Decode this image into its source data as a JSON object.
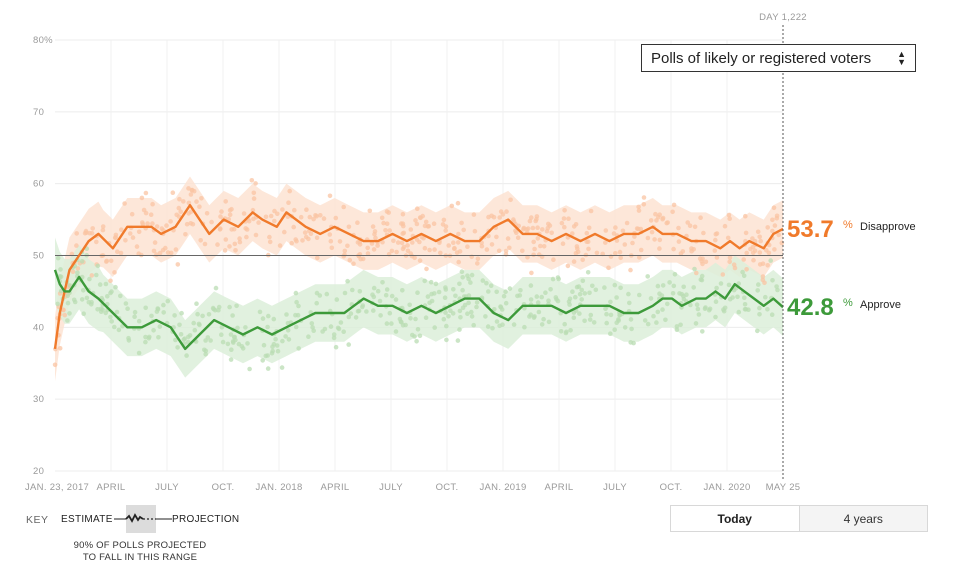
{
  "chart_data": {
    "type": "line",
    "y_ticks": [
      "80%",
      "70",
      "60",
      "50",
      "40",
      "30",
      "20"
    ],
    "ylim": [
      20,
      80
    ],
    "x_ticks": [
      "JAN. 23, 2017",
      "APRIL",
      "JULY",
      "OCT.",
      "JAN. 2018",
      "APRIL",
      "JULY",
      "OCT.",
      "JAN. 2019",
      "APRIL",
      "JULY",
      "OCT.",
      "JAN. 2020",
      "MAY 25"
    ],
    "reference_line": 50,
    "marker_label": "DAY 1,222",
    "series": [
      {
        "name": "Disapprove",
        "color": "#f07a2b",
        "points": [
          [
            0,
            37
          ],
          [
            1,
            42
          ],
          [
            2,
            45
          ],
          [
            3,
            48
          ],
          [
            4,
            49
          ],
          [
            5,
            50
          ],
          [
            6,
            51
          ],
          [
            7,
            52
          ],
          [
            9,
            53
          ],
          [
            12,
            51
          ],
          [
            15,
            54
          ],
          [
            20,
            54
          ],
          [
            22,
            53
          ],
          [
            25,
            54
          ],
          [
            28,
            57
          ],
          [
            30,
            55
          ],
          [
            32,
            53
          ],
          [
            35,
            55
          ],
          [
            38,
            54
          ],
          [
            41,
            56
          ],
          [
            43,
            55
          ],
          [
            46,
            54
          ],
          [
            48,
            56
          ],
          [
            50,
            55
          ],
          [
            52,
            54
          ],
          [
            55,
            53
          ],
          [
            58,
            54
          ],
          [
            61,
            53
          ],
          [
            64,
            52
          ],
          [
            67,
            52
          ],
          [
            70,
            53
          ],
          [
            73,
            52
          ],
          [
            76,
            53
          ],
          [
            79,
            52
          ],
          [
            82,
            53
          ],
          [
            85,
            52
          ],
          [
            88,
            52
          ],
          [
            91,
            54
          ],
          [
            94,
            55
          ],
          [
            97,
            53
          ],
          [
            100,
            53
          ],
          [
            103,
            52
          ],
          [
            106,
            53
          ],
          [
            109,
            52
          ],
          [
            112,
            53
          ],
          [
            115,
            52
          ],
          [
            118,
            53
          ],
          [
            121,
            53
          ],
          [
            124,
            54
          ],
          [
            126,
            53
          ],
          [
            129,
            53
          ],
          [
            132,
            52
          ],
          [
            135,
            52
          ],
          [
            138,
            51
          ],
          [
            140,
            52
          ],
          [
            142,
            51
          ],
          [
            144,
            52
          ],
          [
            147,
            51
          ],
          [
            149,
            53
          ],
          [
            151,
            53.7
          ]
        ],
        "current_value": "53.7",
        "label": "Disapprove"
      },
      {
        "name": "Approve",
        "color": "#3d9a3a",
        "points": [
          [
            0,
            48
          ],
          [
            1,
            46
          ],
          [
            2,
            45
          ],
          [
            3,
            45
          ],
          [
            5,
            47
          ],
          [
            7,
            45
          ],
          [
            9,
            44
          ],
          [
            12,
            42
          ],
          [
            15,
            40
          ],
          [
            18,
            40
          ],
          [
            21,
            41
          ],
          [
            24,
            40
          ],
          [
            27,
            37
          ],
          [
            30,
            39
          ],
          [
            33,
            41
          ],
          [
            36,
            40
          ],
          [
            39,
            39
          ],
          [
            42,
            40
          ],
          [
            45,
            39
          ],
          [
            48,
            40
          ],
          [
            51,
            41
          ],
          [
            54,
            42
          ],
          [
            57,
            42
          ],
          [
            60,
            42
          ],
          [
            62,
            43
          ],
          [
            64,
            44
          ],
          [
            67,
            43
          ],
          [
            70,
            43
          ],
          [
            73,
            42
          ],
          [
            76,
            43
          ],
          [
            79,
            42
          ],
          [
            82,
            43
          ],
          [
            85,
            44
          ],
          [
            88,
            44
          ],
          [
            91,
            42
          ],
          [
            94,
            41
          ],
          [
            97,
            43
          ],
          [
            100,
            43
          ],
          [
            103,
            43
          ],
          [
            106,
            42
          ],
          [
            109,
            43
          ],
          [
            112,
            43
          ],
          [
            115,
            43
          ],
          [
            118,
            42
          ],
          [
            121,
            42
          ],
          [
            124,
            43
          ],
          [
            126,
            44
          ],
          [
            128,
            44
          ],
          [
            130,
            43
          ],
          [
            133,
            44
          ],
          [
            135,
            44
          ],
          [
            137,
            45
          ],
          [
            139,
            44
          ],
          [
            141,
            46
          ],
          [
            143,
            45
          ],
          [
            145,
            44
          ],
          [
            147,
            43
          ],
          [
            149,
            44
          ],
          [
            151,
            42.8
          ]
        ],
        "current_value": "42.8",
        "label": "Approve"
      }
    ]
  },
  "dropdown": {
    "label": "Polls of likely or registered voters"
  },
  "value_suffix": "%",
  "key": {
    "label": "KEY",
    "estimate": "ESTIMATE",
    "projection": "PROJECTION",
    "note_line1": "90% OF POLLS PROJECTED",
    "note_line2": "TO FALL IN THIS RANGE"
  },
  "toggle": {
    "today": "Today",
    "four_years": "4 years"
  }
}
